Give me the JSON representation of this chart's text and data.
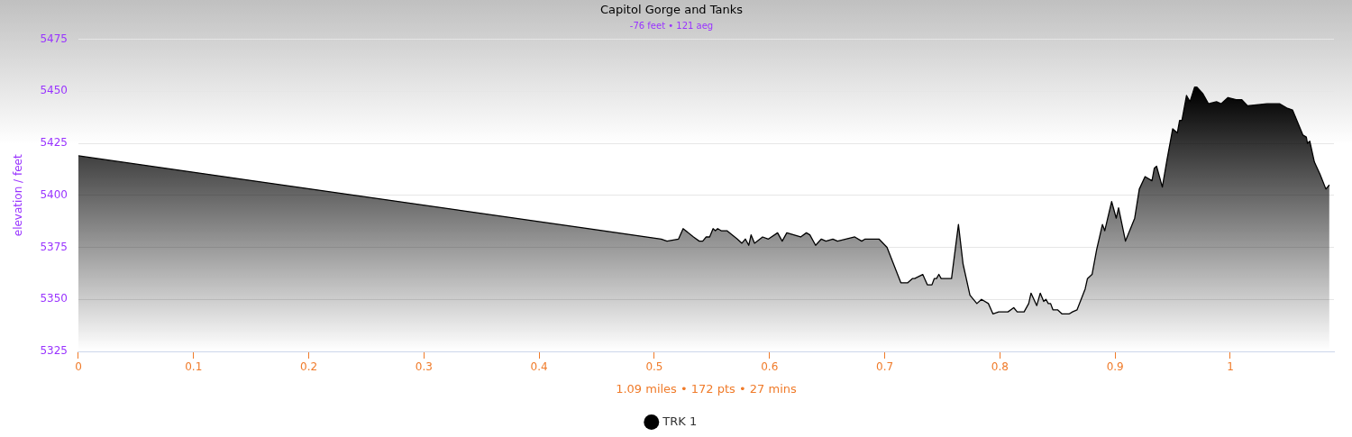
{
  "chart_data": {
    "type": "area",
    "title": "Capitol Gorge and Tanks",
    "subtitle": "-76 feet • 121 aeg",
    "xlabel": "1.09 miles • 172 pts • 27 mins",
    "ylabel": "elevation / feet",
    "xlim": [
      0,
      1.09
    ],
    "xticks": [
      0,
      0.1,
      0.2,
      0.3,
      0.4,
      0.5,
      0.6,
      0.7,
      0.8,
      0.9,
      1
    ],
    "ylim": [
      5325,
      5475
    ],
    "yticks": [
      5325,
      5350,
      5375,
      5400,
      5425,
      5450,
      5475
    ],
    "grid": "y",
    "legend": "bottom",
    "marker": "none",
    "line_style": "solid",
    "series": [
      {
        "name": "TRK 1",
        "color": "#000000",
        "x": [
          0,
          0.506,
          0.511,
          0.521,
          0.525,
          0.534,
          0.539,
          0.542,
          0.545,
          0.548,
          0.551,
          0.553,
          0.555,
          0.558,
          0.563,
          0.572,
          0.576,
          0.579,
          0.582,
          0.584,
          0.587,
          0.594,
          0.599,
          0.607,
          0.611,
          0.615,
          0.627,
          0.632,
          0.635,
          0.64,
          0.645,
          0.649,
          0.655,
          0.659,
          0.674,
          0.68,
          0.683,
          0.695,
          0.702,
          0.714,
          0.72,
          0.724,
          0.726,
          0.733,
          0.737,
          0.741,
          0.743,
          0.745,
          0.747,
          0.749,
          0.758,
          0.764,
          0.768,
          0.774,
          0.78,
          0.784,
          0.79,
          0.794,
          0.799,
          0.807,
          0.812,
          0.815,
          0.821,
          0.825,
          0.827,
          0.832,
          0.835,
          0.838,
          0.84,
          0.842,
          0.844,
          0.846,
          0.85,
          0.854,
          0.86,
          0.863,
          0.867,
          0.874,
          0.876,
          0.88,
          0.884,
          0.889,
          0.891,
          0.897,
          0.901,
          0.903,
          0.909,
          0.917,
          0.921,
          0.926,
          0.932,
          0.934,
          0.936,
          0.941,
          0.945,
          0.949,
          0.95,
          0.954,
          0.956,
          0.958,
          0.962,
          0.965,
          0.969,
          0.971,
          0.976,
          0.981,
          0.988,
          0.992,
          0.998,
          1.005,
          1.01,
          1.015,
          1.032,
          1.043,
          1.049,
          1.054,
          1.063,
          1.066,
          1.067,
          1.069,
          1.073,
          1.078,
          1.083,
          1.086
        ],
        "values": [
          5419,
          5379,
          5378,
          5379,
          5384,
          5380,
          5378,
          5378,
          5380,
          5380,
          5384,
          5383,
          5384,
          5383,
          5383,
          5379,
          5377,
          5379,
          5376,
          5381,
          5377,
          5380,
          5379,
          5382,
          5378,
          5382,
          5380,
          5382,
          5381,
          5376,
          5379,
          5378,
          5379,
          5378,
          5380,
          5378,
          5379,
          5379,
          5375,
          5358,
          5358,
          5360,
          5360,
          5362,
          5357,
          5357,
          5360,
          5360,
          5362,
          5360,
          5360,
          5386,
          5367,
          5352,
          5348,
          5350,
          5348,
          5343,
          5344,
          5344,
          5346,
          5344,
          5344,
          5348,
          5353,
          5347,
          5353,
          5349,
          5350,
          5348,
          5348,
          5345,
          5345,
          5343,
          5343,
          5344,
          5345,
          5355,
          5360,
          5362,
          5374,
          5386,
          5383,
          5397,
          5389,
          5394,
          5378,
          5389,
          5403,
          5409,
          5407,
          5413,
          5414,
          5404,
          5417,
          5429,
          5432,
          5430,
          5436,
          5436,
          5448,
          5445,
          5452,
          5452,
          5449,
          5444,
          5445,
          5444,
          5447,
          5446,
          5446,
          5443,
          5444,
          5444,
          5442,
          5441,
          5429,
          5428,
          5425,
          5426,
          5416,
          5410,
          5403,
          5405
        ]
      }
    ]
  }
}
